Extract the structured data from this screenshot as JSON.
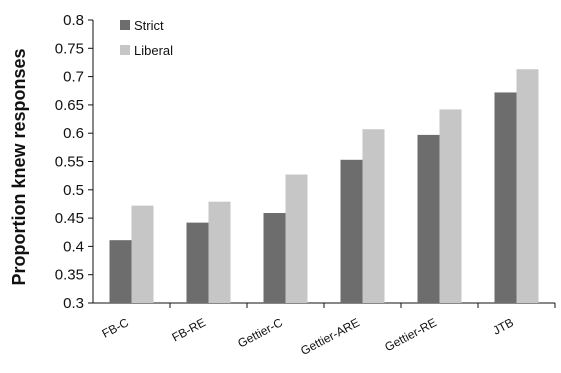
{
  "chart_data": {
    "type": "bar",
    "title": "",
    "xlabel": "",
    "ylabel": "Proportion knew responses",
    "ylim": [
      0.3,
      0.8
    ],
    "yticks": [
      0.3,
      0.35,
      0.4,
      0.45,
      0.5,
      0.55,
      0.6,
      0.65,
      0.7,
      0.75,
      0.8
    ],
    "grid": false,
    "legend_position": "top-left",
    "categories": [
      "FB-C",
      "FB-RE",
      "Gettier-C",
      "Gettier-ARE",
      "Gettier-RE",
      "JTB"
    ],
    "series": [
      {
        "name": "Strict",
        "color": "#6d6d6d",
        "values": [
          0.411,
          0.442,
          0.459,
          0.553,
          0.597,
          0.672
        ]
      },
      {
        "name": "Liberal",
        "color": "#c6c6c6",
        "values": [
          0.472,
          0.479,
          0.527,
          0.607,
          0.642,
          0.713
        ]
      }
    ]
  }
}
